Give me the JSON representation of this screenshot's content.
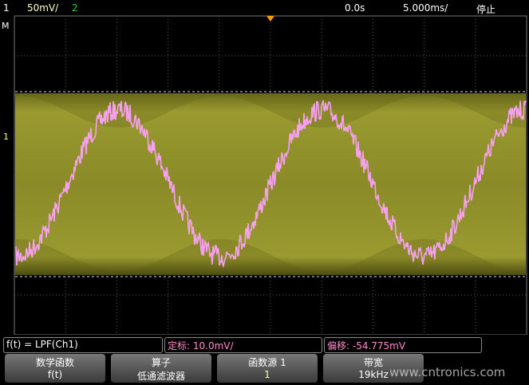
{
  "status_bar": {
    "channel_1": "1",
    "channel_1_scale": "50mV/",
    "channel_2": "2",
    "time_offset": "0.0s",
    "time_scale": "5.000ms/",
    "run_state": "停止"
  },
  "markers": {
    "math": "M",
    "channel": "1"
  },
  "info_bar": {
    "function": "f(t) = LPF(Ch1)",
    "scale": "定标:  10.0mV/",
    "offset": "偏移:  -54.775mV"
  },
  "softkeys": [
    {
      "label": "数学函数",
      "value": "f(t)"
    },
    {
      "label": "算子",
      "value": "低通滤波器"
    },
    {
      "label": "函数源 1",
      "value": "1"
    },
    {
      "label": "带宽",
      "value": "19kHz"
    }
  ],
  "watermark": "www.cntronics.com"
}
